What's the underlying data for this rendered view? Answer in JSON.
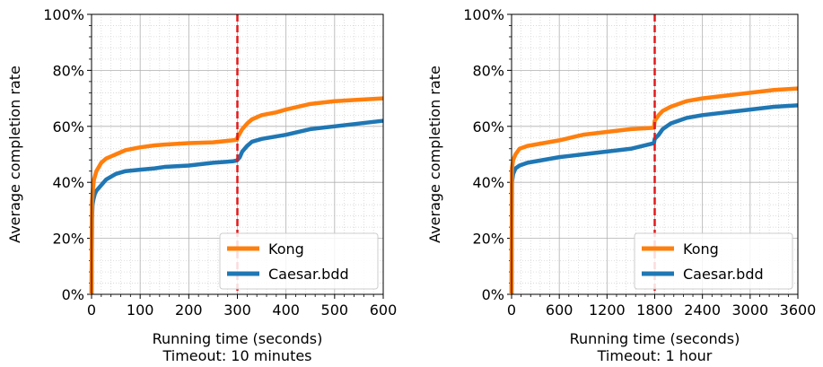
{
  "chart_data": [
    {
      "type": "line",
      "title": "",
      "xlabel": "Running time (seconds)",
      "subtitle": "Timeout: 10 minutes",
      "ylabel": "Average completion rate",
      "xlim": [
        0,
        600
      ],
      "ylim": [
        0,
        100
      ],
      "xticks": [
        "0",
        "100",
        "200",
        "300",
        "400",
        "500",
        "600"
      ],
      "yticks": [
        "0%",
        "20%",
        "40%",
        "60%",
        "80%",
        "100%"
      ],
      "grid": true,
      "legend_position": "bottom-right",
      "timeout_marker": 300,
      "series": [
        {
          "name": "Kong",
          "color": "#ff7f0e",
          "x": [
            0,
            1,
            3,
            5,
            10,
            20,
            30,
            50,
            70,
            100,
            130,
            150,
            200,
            250,
            290,
            299,
            300,
            305,
            310,
            320,
            330,
            350,
            380,
            400,
            450,
            500,
            550,
            600
          ],
          "y": [
            0,
            33,
            38,
            41,
            44,
            47,
            48.5,
            50,
            51.5,
            52.5,
            53.2,
            53.5,
            54,
            54.3,
            55,
            55.2,
            56,
            57.5,
            59,
            61,
            62.5,
            64,
            65,
            66,
            68,
            69,
            69.5,
            70
          ]
        },
        {
          "name": "Caesar.bdd",
          "color": "#1f77b4",
          "x": [
            0,
            1,
            2,
            4,
            7,
            10,
            20,
            30,
            50,
            70,
            100,
            130,
            150,
            200,
            250,
            290,
            299,
            300,
            305,
            310,
            320,
            330,
            350,
            400,
            450,
            500,
            550,
            600
          ],
          "y": [
            0,
            27,
            32,
            34,
            36,
            37,
            39,
            41,
            43,
            44,
            44.5,
            45,
            45.5,
            46,
            47,
            47.5,
            47.8,
            48,
            49,
            51,
            53,
            54.5,
            55.5,
            57,
            59,
            60,
            61,
            62
          ]
        }
      ]
    },
    {
      "type": "line",
      "title": "",
      "xlabel": "Running time (seconds)",
      "subtitle": "Timeout: 1 hour",
      "ylabel": "Average completion rate",
      "xlim": [
        0,
        3600
      ],
      "ylim": [
        0,
        100
      ],
      "xticks": [
        "0",
        "600",
        "1200",
        "1800",
        "2400",
        "3000",
        "3600"
      ],
      "yticks": [
        "0%",
        "20%",
        "40%",
        "60%",
        "80%",
        "100%"
      ],
      "grid": true,
      "legend_position": "bottom-right",
      "timeout_marker": 1800,
      "series": [
        {
          "name": "Kong",
          "color": "#ff7f0e",
          "x": [
            0,
            5,
            20,
            50,
            100,
            200,
            400,
            600,
            900,
            1200,
            1500,
            1790,
            1800,
            1850,
            1900,
            2000,
            2200,
            2400,
            2700,
            3000,
            3300,
            3600
          ],
          "y": [
            0,
            45,
            48,
            50,
            52,
            53,
            54,
            55,
            57,
            58,
            59,
            59.5,
            62,
            64,
            65.5,
            67,
            69,
            70,
            71,
            72,
            73,
            73.5
          ]
        },
        {
          "name": "Caesar.bdd",
          "color": "#1f77b4",
          "x": [
            0,
            5,
            20,
            50,
            100,
            200,
            400,
            600,
            900,
            1200,
            1500,
            1790,
            1800,
            1850,
            1900,
            2000,
            2200,
            2400,
            2700,
            3000,
            3300,
            3600
          ],
          "y": [
            0,
            40,
            43,
            45,
            46,
            47,
            48,
            49,
            50,
            51,
            52,
            54,
            55.5,
            57,
            59,
            61,
            63,
            64,
            65,
            66,
            67,
            67.5
          ]
        }
      ]
    }
  ]
}
